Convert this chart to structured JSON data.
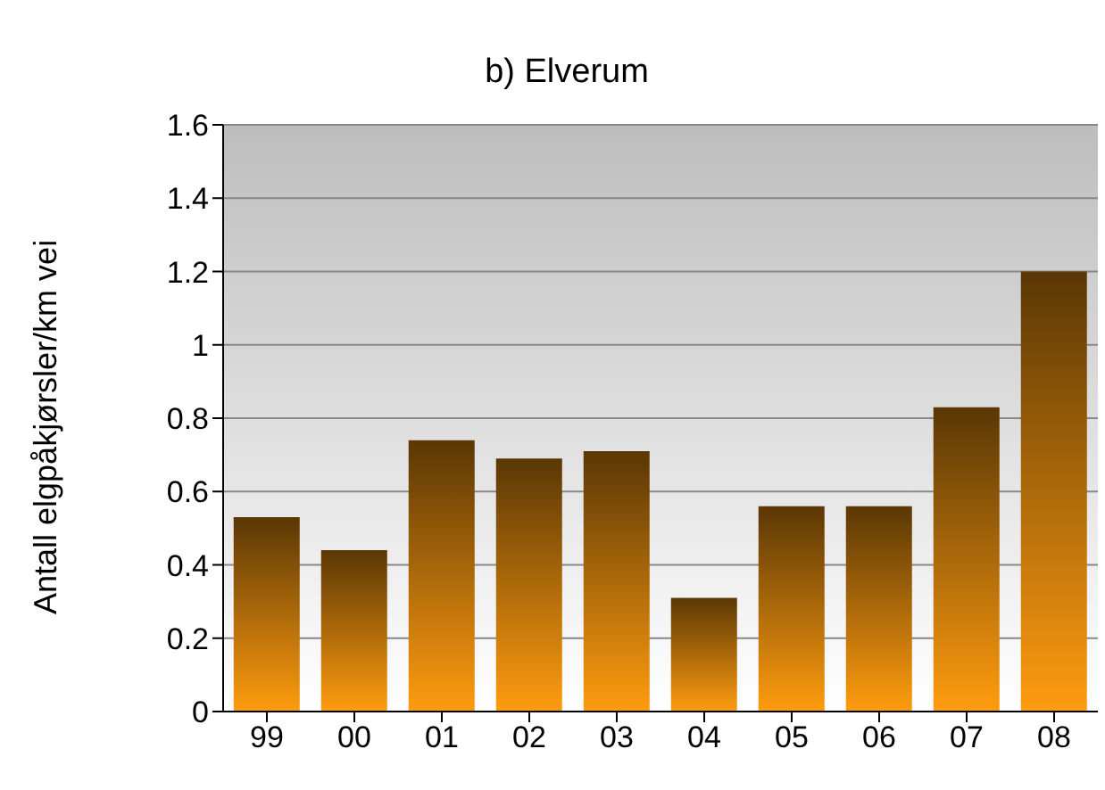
{
  "chart_data": {
    "type": "bar",
    "title": "b) Elverum",
    "ylabel": "Antall elgpåkjørsler/km vei",
    "categories": [
      "99",
      "00",
      "01",
      "02",
      "03",
      "04",
      "05",
      "06",
      "07",
      "08"
    ],
    "values": [
      0.53,
      0.44,
      0.74,
      0.69,
      0.71,
      0.31,
      0.56,
      0.56,
      0.83,
      1.2
    ],
    "color": "#c77a0c",
    "ylim": [
      0,
      1.6
    ],
    "yticks": [
      0,
      0.2,
      0.4,
      0.6,
      0.8,
      1,
      1.2,
      1.4,
      1.6
    ],
    "grid": "y",
    "legend": false
  }
}
